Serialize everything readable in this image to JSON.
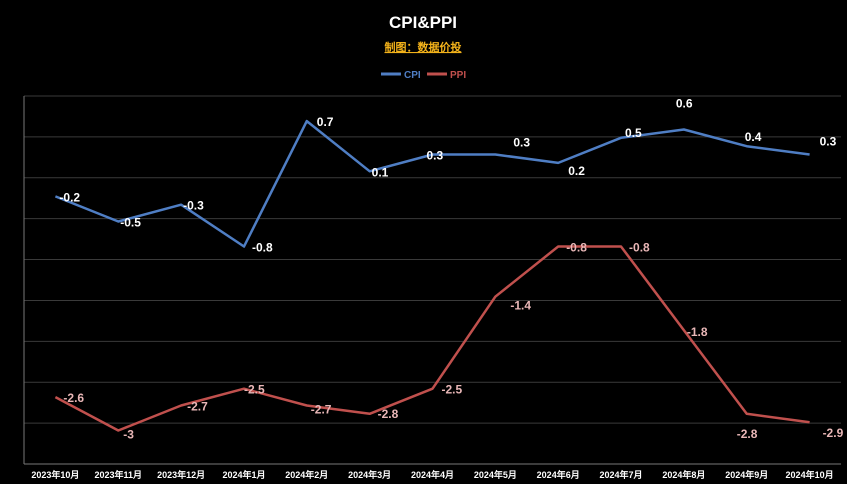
{
  "chart_data": {
    "type": "line",
    "title": "CPI&PPI",
    "subtitle": "制图：数据价投",
    "xlabel": "",
    "ylabel": "",
    "ylim": [
      -3.4,
      1.0
    ],
    "grid": true,
    "legend_position": "top",
    "categories": [
      "2023年10月",
      "2023年11月",
      "2023年12月",
      "2024年1月",
      "2024年2月",
      "2024年3月",
      "2024年4月",
      "2024年5月",
      "2024年6月",
      "2024年7月",
      "2024年8月",
      "2024年9月",
      "2024年10月"
    ],
    "series": [
      {
        "name": "CPI",
        "color": "#4f7ec4",
        "values": [
          -0.2,
          -0.5,
          -0.3,
          -0.8,
          0.7,
          0.1,
          0.3,
          0.3,
          0.2,
          0.5,
          0.6,
          0.4,
          0.3
        ],
        "labels": [
          "-0.2",
          "-0.5",
          "-0.3",
          "-0.8",
          "0.7",
          "0.1",
          "0.3",
          "0.3",
          "0.2",
          "0.5",
          "0.6",
          "0.4",
          "0.3"
        ]
      },
      {
        "name": "PPI",
        "color": "#c0504d",
        "values": [
          -2.6,
          -3.0,
          -2.7,
          -2.5,
          -2.7,
          -2.8,
          -2.5,
          -1.4,
          -0.8,
          -0.8,
          -1.8,
          -2.8,
          -2.9
        ],
        "labels": [
          "-2.6",
          "-3",
          "-2.7",
          "-2.5",
          "-2.7",
          "-2.8",
          "-2.5",
          "-1.4",
          "-0.8",
          "-0.8",
          "-1.8",
          "-2.8",
          "-2.9"
        ]
      }
    ]
  }
}
